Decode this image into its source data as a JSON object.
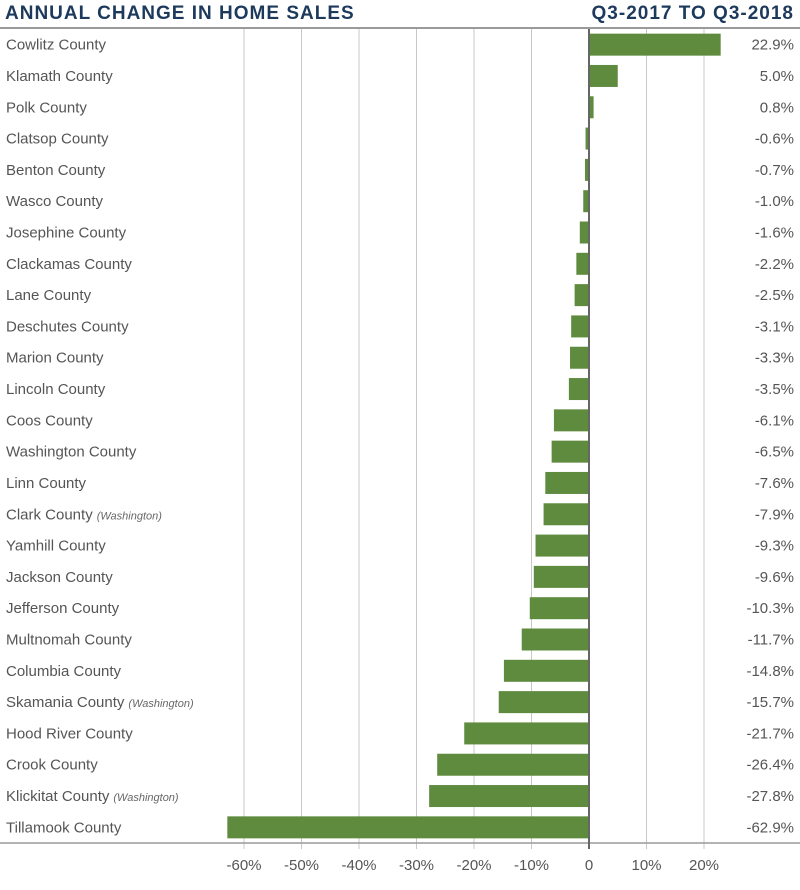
{
  "header": {
    "title": "ANNUAL CHANGE IN HOME SALES",
    "period": "Q3-2017 TO Q3-2018"
  },
  "colors": {
    "bar": "#5f8b3f",
    "title": "#1d3a5c",
    "grid": "#c8c8c8",
    "axis": "#666666",
    "text": "#555555"
  },
  "chart_data": {
    "type": "bar",
    "orientation": "horizontal",
    "title": "ANNUAL CHANGE IN HOME SALES",
    "subtitle": "Q3-2017 TO Q3-2018",
    "xlabel": "",
    "ylabel": "",
    "xlim": [
      -70,
      30
    ],
    "grid": true,
    "xticks": [
      -60,
      -50,
      -40,
      -30,
      -20,
      -10,
      0,
      10,
      20
    ],
    "xtick_labels": [
      "-60%",
      "-50%",
      "-40%",
      "-30%",
      "-20%",
      "-10%",
      "0",
      "10%",
      "20%"
    ],
    "categories": [
      {
        "name": "Cowlitz County",
        "note": ""
      },
      {
        "name": "Klamath County",
        "note": ""
      },
      {
        "name": "Polk County",
        "note": ""
      },
      {
        "name": "Clatsop County",
        "note": ""
      },
      {
        "name": "Benton County",
        "note": ""
      },
      {
        "name": "Wasco County",
        "note": ""
      },
      {
        "name": "Josephine County",
        "note": ""
      },
      {
        "name": "Clackamas County",
        "note": ""
      },
      {
        "name": "Lane County",
        "note": ""
      },
      {
        "name": "Deschutes County",
        "note": ""
      },
      {
        "name": "Marion County",
        "note": ""
      },
      {
        "name": "Lincoln County",
        "note": ""
      },
      {
        "name": "Coos County",
        "note": ""
      },
      {
        "name": "Washington County",
        "note": ""
      },
      {
        "name": "Linn County",
        "note": ""
      },
      {
        "name": "Clark County",
        "note": "(Washington)"
      },
      {
        "name": "Yamhill County",
        "note": ""
      },
      {
        "name": "Jackson County",
        "note": ""
      },
      {
        "name": "Jefferson County",
        "note": ""
      },
      {
        "name": "Multnomah County",
        "note": ""
      },
      {
        "name": "Columbia County",
        "note": ""
      },
      {
        "name": "Skamania County",
        "note": "(Washington)"
      },
      {
        "name": "Hood River County",
        "note": ""
      },
      {
        "name": "Crook County",
        "note": ""
      },
      {
        "name": "Klickitat County",
        "note": "(Washington)"
      },
      {
        "name": "Tillamook County",
        "note": ""
      }
    ],
    "values": [
      22.9,
      5.0,
      0.8,
      -0.6,
      -0.7,
      -1.0,
      -1.6,
      -2.2,
      -2.5,
      -3.1,
      -3.3,
      -3.5,
      -6.1,
      -6.5,
      -7.6,
      -7.9,
      -9.3,
      -9.6,
      -10.3,
      -11.7,
      -14.8,
      -15.7,
      -21.7,
      -26.4,
      -27.8,
      -62.9
    ],
    "value_labels": [
      "22.9%",
      "5.0%",
      "0.8%",
      "-0.6%",
      "-0.7%",
      "-1.0%",
      "-1.6%",
      "-2.2%",
      "-2.5%",
      "-3.1%",
      "-3.3%",
      "-3.5%",
      "-6.1%",
      "-6.5%",
      "-7.6%",
      "-7.9%",
      "-9.3%",
      "-9.6%",
      "-10.3%",
      "-11.7%",
      "-14.8%",
      "-15.7%",
      "-21.7%",
      "-26.4%",
      "-27.8%",
      "-62.9%"
    ]
  }
}
